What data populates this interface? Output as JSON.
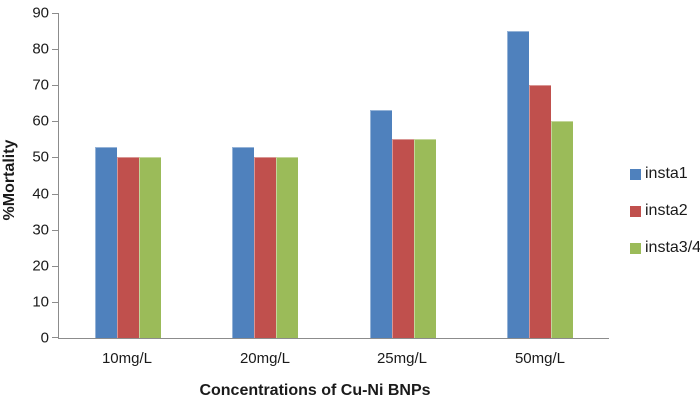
{
  "chart_data": {
    "type": "bar",
    "title": "",
    "categories": [
      "10mg/L",
      "20mg/L",
      "25mg/L",
      "50mg/L"
    ],
    "series": [
      {
        "name": "insta1",
        "color": "#4F81BD",
        "highlight": "#95B3D7",
        "values": [
          53,
          53,
          63,
          85
        ]
      },
      {
        "name": "insta2",
        "color": "#C0504D",
        "highlight": "#D99694",
        "values": [
          50,
          50,
          55,
          70
        ]
      },
      {
        "name": "insta3/4",
        "color": "#9BBB59",
        "highlight": "#C3D69B",
        "values": [
          50,
          50,
          55,
          60
        ]
      }
    ],
    "xlabel": "Concentrations of Cu-Ni BNPs",
    "ylabel": "%Mortality",
    "ylim": [
      0,
      90
    ],
    "ytick_step": 10,
    "ytick_labels": [
      "0",
      "10",
      "20",
      "30",
      "40",
      "50",
      "60",
      "70",
      "80",
      "90"
    ],
    "grid": false,
    "legend_position": "right",
    "axis_color": "#8C8C8C",
    "text_color": "#1A1A1A"
  }
}
